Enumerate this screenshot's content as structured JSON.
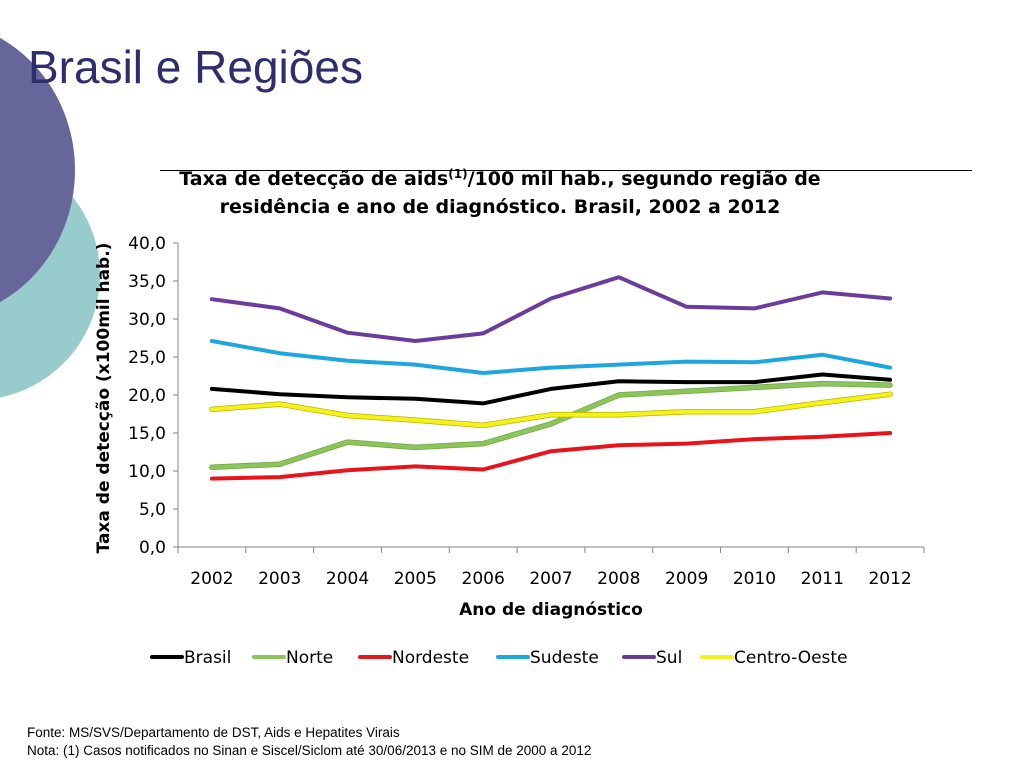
{
  "slide": {
    "title": "Brasil e Regiões"
  },
  "footer": {
    "source": "Fonte: MS/SVS/Departamento de DST, Aids e Hepatites Virais",
    "note": "Nota: (1) Casos notificados no Sinan e Siscel/Siclom até 30/06/2013 e no SIM de 2000 a 2012"
  },
  "chart_data": {
    "type": "line",
    "title_part1": "Taxa de detecção de aids",
    "title_sup": "(1)",
    "title_part2": "/100 mil hab., segundo região de",
    "title_line2": "residência e ano de diagnóstico. Brasil, 2002 a 2012",
    "xlabel": "Ano de diagnóstico",
    "ylabel": "Taxa de detecção (x100mil hab.)",
    "ylim": [
      0,
      40
    ],
    "ytick_step": 5,
    "yticks": [
      "0,0",
      "5,0",
      "10,0",
      "15,0",
      "20,0",
      "25,0",
      "30,0",
      "35,0",
      "40,0"
    ],
    "grid": false,
    "legend_position": "bottom",
    "categories": [
      "2002",
      "2003",
      "2004",
      "2005",
      "2006",
      "2007",
      "2008",
      "2009",
      "2010",
      "2011",
      "2012"
    ],
    "series": [
      {
        "name": "Brasil",
        "color": "#000000",
        "values": [
          20.8,
          20.1,
          19.7,
          19.5,
          18.9,
          20.8,
          21.8,
          21.7,
          21.7,
          22.7,
          22.0
        ]
      },
      {
        "name": "Norte",
        "color": "#8cc65a",
        "values": [
          10.5,
          10.9,
          13.8,
          13.1,
          13.6,
          16.2,
          20.0,
          20.5,
          21.0,
          21.5,
          21.3
        ]
      },
      {
        "name": "Nordeste",
        "color": "#e8141c",
        "values": [
          9.0,
          9.2,
          10.1,
          10.6,
          10.2,
          12.6,
          13.4,
          13.6,
          14.2,
          14.5,
          15.0
        ]
      },
      {
        "name": "Sudeste",
        "color": "#1fa6de",
        "values": [
          27.1,
          25.5,
          24.5,
          24.0,
          22.9,
          23.6,
          24.0,
          24.4,
          24.3,
          25.3,
          23.6
        ]
      },
      {
        "name": "Sul",
        "color": "#6c3c9c",
        "values": [
          32.6,
          31.4,
          28.2,
          27.1,
          28.1,
          32.7,
          35.5,
          31.6,
          31.4,
          33.5,
          32.7
        ]
      },
      {
        "name": "Centro-Oeste",
        "color": "#f4f21a",
        "values": [
          18.1,
          18.8,
          17.3,
          16.7,
          16.0,
          17.4,
          17.4,
          17.8,
          17.8,
          19.0,
          20.1
        ]
      }
    ]
  }
}
